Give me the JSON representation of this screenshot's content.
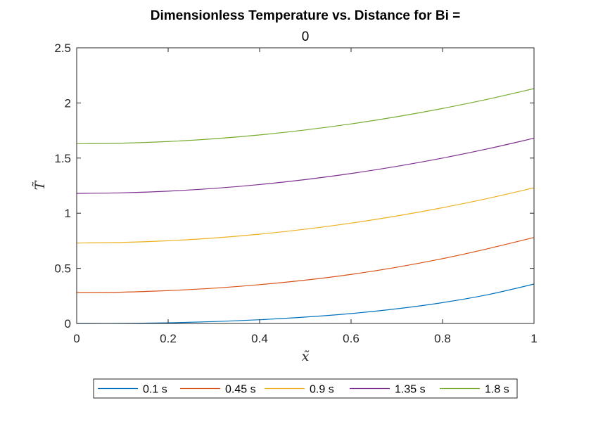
{
  "chart_data": {
    "type": "line",
    "title": "Dimensionless Temperature vs. Distance for Bi =",
    "subtitle": "0",
    "xlabel": "x̃",
    "ylabel": "T̃",
    "xlim": [
      0,
      1
    ],
    "ylim": [
      0,
      2.5
    ],
    "xticks": [
      0,
      0.2,
      0.4,
      0.6,
      0.8,
      1
    ],
    "xtick_labels": [
      "0",
      "0.2",
      "0.4",
      "0.6",
      "0.8",
      "1"
    ],
    "yticks": [
      0,
      0.5,
      1,
      1.5,
      2,
      2.5
    ],
    "ytick_labels": [
      "0",
      "0.5",
      "1",
      "1.5",
      "2",
      "2.5"
    ],
    "grid": false,
    "legend_position": "bottom-outside",
    "x": [
      0,
      0.1,
      0.2,
      0.3,
      0.4,
      0.5,
      0.6,
      0.7,
      0.8,
      0.9,
      1.0
    ],
    "series": [
      {
        "name": "0.1 s",
        "color": "#0072BD",
        "values": [
          0.0,
          0.001,
          0.006,
          0.017,
          0.034,
          0.058,
          0.09,
          0.133,
          0.189,
          0.262,
          0.357
        ]
      },
      {
        "name": "0.45 s",
        "color": "#D95319",
        "values": [
          0.28,
          0.284,
          0.298,
          0.32,
          0.352,
          0.393,
          0.445,
          0.51,
          0.588,
          0.679,
          0.78
        ]
      },
      {
        "name": "0.9 s",
        "color": "#EDB120",
        "values": [
          0.73,
          0.735,
          0.75,
          0.775,
          0.81,
          0.855,
          0.91,
          0.975,
          1.05,
          1.135,
          1.23
        ]
      },
      {
        "name": "1.35 s",
        "color": "#7E2F8E",
        "values": [
          1.18,
          1.185,
          1.2,
          1.225,
          1.26,
          1.305,
          1.36,
          1.425,
          1.5,
          1.585,
          1.68
        ]
      },
      {
        "name": "1.8 s",
        "color": "#77AC30",
        "values": [
          1.63,
          1.635,
          1.65,
          1.675,
          1.71,
          1.755,
          1.81,
          1.875,
          1.95,
          2.035,
          2.13
        ]
      }
    ]
  }
}
